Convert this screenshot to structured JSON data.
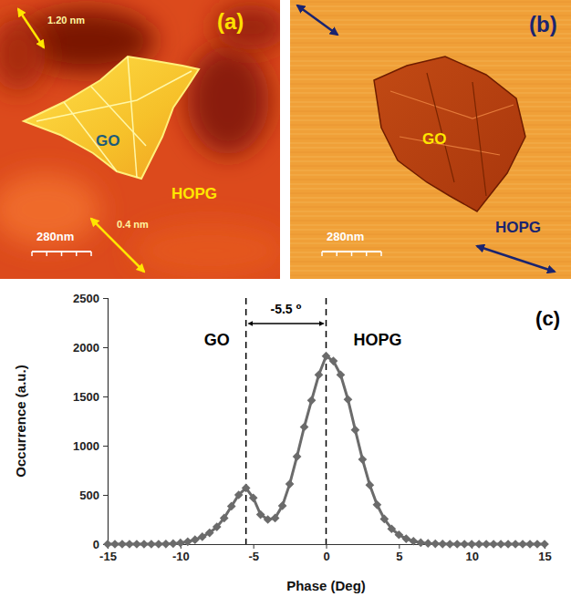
{
  "images": [
    {
      "panel_label": "(a)",
      "texts": [
        "1.20 nm",
        "0.4 nm",
        "GO",
        "HOPG"
      ],
      "scale_bar": "280nm"
    },
    {
      "panel_label": "(b)",
      "texts": [
        "GO",
        "HOPG"
      ],
      "scale_bar": "280nm"
    }
  ],
  "chart_data": {
    "type": "line",
    "panel_label": "(c)",
    "x_label": "Phase (Deg)",
    "y_label": "Occurrence (a.u.)",
    "x": [
      -15,
      -14.5,
      -14,
      -13.5,
      -13,
      -12.5,
      -12,
      -11.5,
      -11,
      -10.5,
      -10,
      -9.5,
      -9,
      -8.5,
      -8,
      -7.5,
      -7,
      -6.5,
      -6,
      -5.5,
      -5,
      -4.5,
      -4,
      -3.5,
      -3,
      -2.5,
      -2,
      -1.5,
      -1,
      -0.5,
      0,
      0.5,
      1,
      1.5,
      2,
      2.5,
      3,
      3.5,
      4,
      4.5,
      5,
      5.5,
      6,
      6.5,
      7,
      7.5,
      8,
      8.5,
      9,
      9.5,
      10,
      10.5,
      11,
      11.5,
      12,
      12.5,
      13,
      13.5,
      14,
      14.5,
      15
    ],
    "values": [
      0,
      0,
      0,
      0,
      0,
      0,
      0,
      0,
      2,
      5,
      12,
      25,
      45,
      75,
      115,
      175,
      265,
      385,
      500,
      570,
      470,
      300,
      250,
      265,
      390,
      610,
      890,
      1190,
      1460,
      1720,
      1910,
      1860,
      1720,
      1470,
      1160,
      860,
      600,
      400,
      255,
      155,
      95,
      55,
      30,
      15,
      8,
      4,
      2,
      0,
      0,
      0,
      0,
      0,
      0,
      0,
      0,
      0,
      0,
      0,
      0,
      0,
      0
    ],
    "color": "#6b6b6b",
    "marker": "diamond",
    "line_style": "solid",
    "xlim": [
      -15,
      15
    ],
    "xticks": [
      -15,
      -10,
      -5,
      0,
      5,
      10,
      15
    ],
    "ylim": [
      0,
      2500
    ],
    "yticks": [
      0,
      500,
      1000,
      1500,
      2000,
      2500
    ],
    "grid": false,
    "vlines": [
      -5.5,
      0
    ],
    "annotations": [
      {
        "text": "GO"
      },
      {
        "text": "HOPG"
      },
      {
        "text": "-5.5 ⁰"
      }
    ]
  }
}
